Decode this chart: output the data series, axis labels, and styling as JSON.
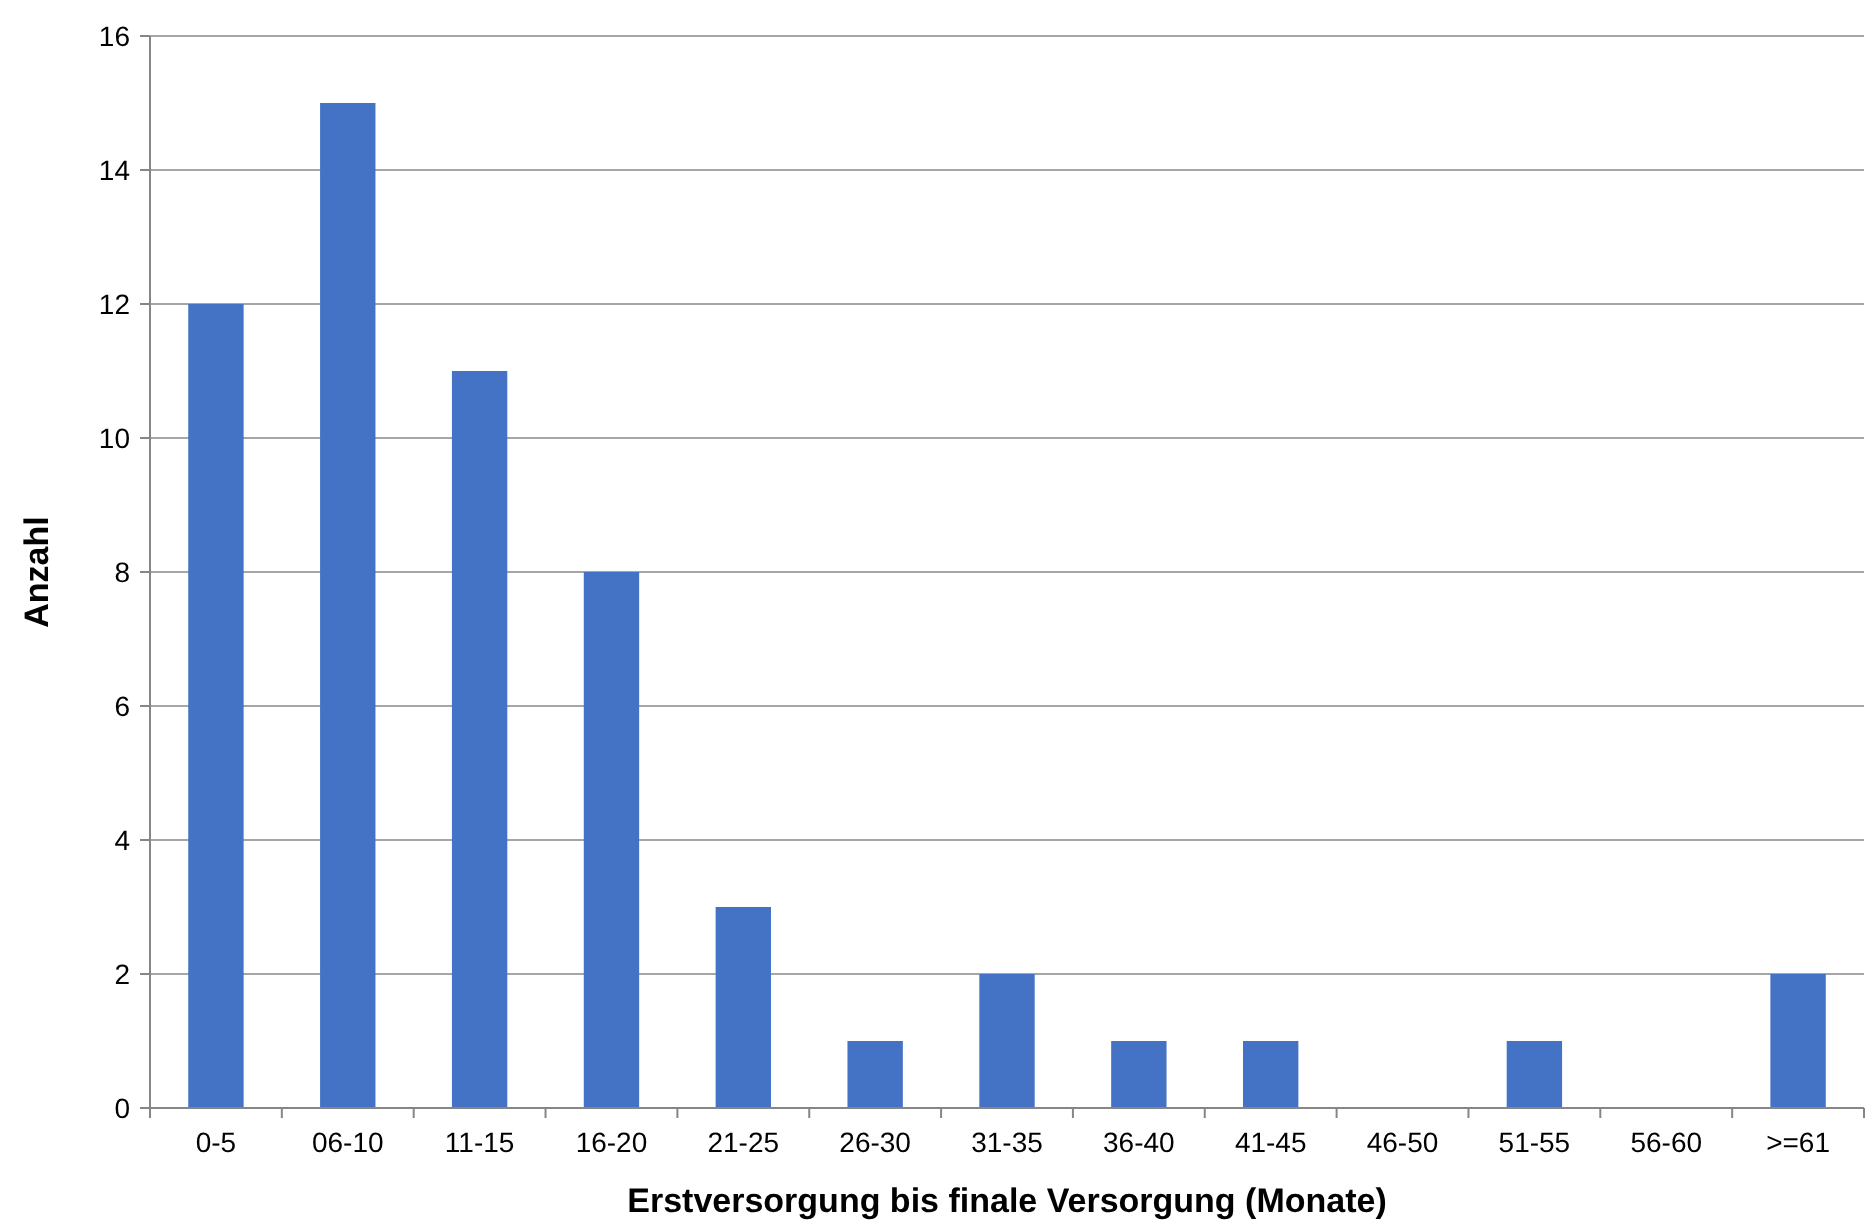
{
  "chart_data": {
    "type": "bar",
    "xlabel": "Erstversorgung bis finale Versorgung (Monate)",
    "ylabel": "Anzahl",
    "categories": [
      "0-5",
      "06-10",
      "11-15",
      "16-20",
      "21-25",
      "26-30",
      "31-35",
      "36-40",
      "41-45",
      "46-50",
      "51-55",
      "56-60",
      ">=61"
    ],
    "values": [
      12,
      15,
      11,
      8,
      3,
      1,
      2,
      1,
      1,
      0,
      1,
      0,
      2
    ],
    "color": "#4472c4",
    "ylim": [
      0,
      16
    ],
    "yticks": [
      0,
      2,
      4,
      6,
      8,
      10,
      12,
      14,
      16
    ],
    "grid": "y"
  }
}
